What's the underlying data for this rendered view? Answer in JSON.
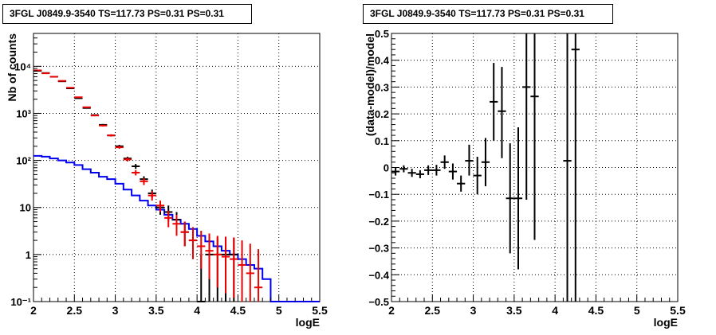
{
  "chart_data": [
    {
      "type": "line",
      "title": "3FGL J0849.9-3540 TS=117.73 PS=0.31 PS=0.31",
      "xlabel": "logE",
      "ylabel": "Nb of counts",
      "xlim": [
        2,
        5.5
      ],
      "ylim": [
        0.1,
        50000
      ],
      "yscale": "log",
      "grid": true,
      "xticks": [
        2,
        2.5,
        3,
        3.5,
        4,
        4.5,
        5,
        5.5
      ],
      "xtick_labels": [
        "2",
        "2.5",
        "3",
        "3.5",
        "4",
        "4.5",
        "5",
        "5.5"
      ],
      "yticks": [
        0.1,
        1,
        10,
        100,
        1000,
        10000
      ],
      "ytick_labels": [
        "10⁻¹",
        "1",
        "10",
        "10²",
        "10³",
        "10⁴"
      ],
      "series": [
        {
          "style": "histogram",
          "color": "#0000ee",
          "bin_edges": [
            2.0,
            2.1,
            2.2,
            2.3,
            2.4,
            2.5,
            2.6,
            2.7,
            2.8,
            2.9,
            3.0,
            3.1,
            3.2,
            3.3,
            3.4,
            3.5,
            3.6,
            3.7,
            3.8,
            3.9,
            4.0,
            4.1,
            4.2,
            4.3,
            4.4,
            4.5,
            4.6,
            4.7,
            4.8,
            4.9,
            5.0,
            5.5
          ],
          "values": [
            125,
            120,
            110,
            100,
            90,
            80,
            65,
            55,
            45,
            40,
            32,
            24,
            18,
            14,
            11,
            9,
            7,
            5.5,
            4.5,
            3.5,
            2.5,
            1.9,
            1.5,
            1.2,
            1.0,
            0.8,
            0.6,
            0.5,
            0.3,
            0.1,
            0.1
          ]
        },
        {
          "style": "errorbar",
          "color": "#000000",
          "x": [
            2.05,
            2.15,
            2.25,
            2.35,
            2.45,
            2.55,
            2.65,
            2.75,
            2.85,
            2.95,
            3.05,
            3.15,
            3.25,
            3.35,
            3.45,
            3.55,
            3.65,
            3.75,
            3.85,
            3.95,
            4.05,
            4.15,
            4.25,
            4.35,
            4.45
          ],
          "y": [
            8000,
            7200,
            6000,
            4800,
            3400,
            2100,
            1300,
            920,
            570,
            340,
            200,
            110,
            75,
            40,
            20,
            10,
            8,
            5.5,
            3,
            2,
            0.1,
            1,
            1,
            1,
            1
          ],
          "y_low": [
            7910,
            7115,
            5923,
            4731,
            3342,
            2054,
            1264,
            890,
            546,
            322,
            186,
            100,
            66,
            34,
            16,
            7,
            5.2,
            3.3,
            1.5,
            0.8,
            0.1,
            0.1,
            0.1,
            0.1,
            0.1
          ],
          "y_high": [
            8090,
            7285,
            6077,
            4869,
            3458,
            2146,
            1336,
            950,
            594,
            358,
            214,
            120,
            84,
            46,
            24,
            13,
            11,
            8,
            5,
            3.8,
            1,
            2.3,
            2.3,
            2.3,
            2.3
          ]
        },
        {
          "style": "errorbar",
          "color": "#ee0000",
          "x": [
            2.05,
            2.15,
            2.25,
            2.35,
            2.45,
            2.55,
            2.65,
            2.75,
            2.85,
            2.95,
            3.05,
            3.15,
            3.25,
            3.35,
            3.45,
            3.55,
            3.65,
            3.75,
            3.85,
            3.95,
            4.05,
            4.15,
            4.25,
            4.35,
            4.45,
            4.55,
            4.65,
            4.75
          ],
          "y": [
            8200,
            7100,
            6000,
            4900,
            3500,
            2200,
            1350,
            900,
            550,
            340,
            190,
            105,
            55,
            36,
            18,
            11,
            6,
            4.5,
            3,
            2,
            1.5,
            1.2,
            1,
            0.9,
            0.8,
            0.6,
            0.4,
            0.2
          ],
          "y_low": [
            8110,
            7015,
            5923,
            4830,
            3440,
            2153,
            1313,
            870,
            527,
            322,
            177,
            95,
            48,
            30,
            14,
            8,
            3.8,
            2.5,
            1.5,
            0.8,
            0.5,
            0.3,
            0.2,
            0.15,
            0.12,
            0.1,
            0.1,
            0.1
          ],
          "y_high": [
            8290,
            7185,
            6077,
            4970,
            3560,
            2247,
            1387,
            930,
            573,
            358,
            203,
            115,
            62,
            42,
            22,
            14,
            8.5,
            7,
            5,
            3.8,
            3.2,
            2.8,
            2.5,
            2.4,
            2.3,
            2,
            1.7,
            1.3
          ]
        }
      ]
    },
    {
      "type": "scatter",
      "title": "3FGL J0849.9-3540 TS=117.73 PS=0.31 PS=0.31",
      "xlabel": "logE",
      "ylabel": "(data-model)/model",
      "xlim": [
        2,
        5.5
      ],
      "ylim": [
        -0.5,
        0.5
      ],
      "grid": true,
      "xticks": [
        2,
        2.5,
        3,
        3.5,
        4,
        4.5,
        5,
        5.5
      ],
      "xtick_labels": [
        "2",
        "2.5",
        "3",
        "3.5",
        "4",
        "4.5",
        "5",
        "5.5"
      ],
      "yticks": [
        -0.5,
        -0.4,
        -0.3,
        -0.2,
        -0.1,
        0,
        0.1,
        0.2,
        0.3,
        0.4,
        0.5
      ],
      "ytick_labels": [
        "−0.5",
        "−0.4",
        "−0.3",
        "−0.2",
        "−0.1",
        "0",
        "0.1",
        "0.2",
        "0.3",
        "0.4",
        "0.5"
      ],
      "series": [
        {
          "style": "errorbar",
          "color": "#000000",
          "x": [
            2.05,
            2.15,
            2.25,
            2.35,
            2.45,
            2.55,
            2.65,
            2.75,
            2.85,
            2.95,
            3.05,
            3.15,
            3.25,
            3.35,
            3.45,
            3.55,
            3.65,
            3.75,
            4.15,
            4.25
          ],
          "y": [
            -0.015,
            -0.005,
            -0.02,
            -0.025,
            -0.01,
            -0.01,
            0.02,
            -0.015,
            -0.06,
            0.025,
            -0.03,
            0.02,
            0.245,
            0.21,
            -0.115,
            -0.115,
            0.3,
            0.265,
            0.025,
            0.44
          ],
          "y_low": [
            -0.03,
            -0.018,
            -0.035,
            -0.04,
            -0.028,
            -0.03,
            -0.005,
            -0.045,
            -0.09,
            -0.03,
            -0.1,
            -0.07,
            0.1,
            0.035,
            -0.32,
            -0.38,
            -0.12,
            -0.27,
            -0.5,
            -0.5
          ],
          "y_high": [
            0.0,
            0.008,
            -0.005,
            -0.01,
            0.008,
            0.01,
            0.045,
            0.015,
            -0.03,
            0.085,
            0.04,
            0.11,
            0.39,
            0.375,
            0.09,
            0.15,
            0.5,
            0.5,
            0.5,
            0.5
          ]
        }
      ]
    }
  ]
}
